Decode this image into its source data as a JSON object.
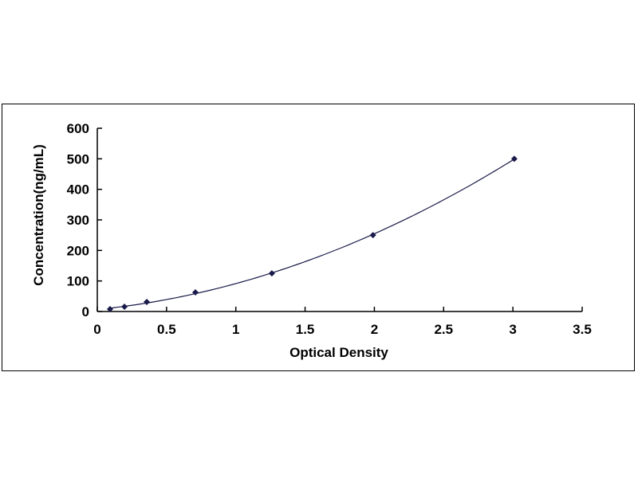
{
  "chart_data": {
    "type": "scatter",
    "xlabel": "Optical Density",
    "ylabel": "Concentration(ng/mL)",
    "xlim": [
      0,
      3.5
    ],
    "ylim": [
      0,
      600
    ],
    "xticks": [
      "0",
      "0.5",
      "1",
      "1.5",
      "2",
      "2.5",
      "3",
      "3.5"
    ],
    "yticks": [
      "0",
      "100",
      "200",
      "300",
      "400",
      "500",
      "600"
    ],
    "grid": false,
    "trendline": "smooth curve",
    "colors": {
      "marker": "#1a1a4a",
      "line": "#1a1a4a"
    },
    "series": [
      {
        "x": [
          0.092,
          0.196,
          0.357,
          0.708,
          1.26,
          1.99,
          3.01
        ],
        "y": [
          7.8,
          15.6,
          31.25,
          62.5,
          125,
          250,
          500
        ]
      }
    ]
  }
}
